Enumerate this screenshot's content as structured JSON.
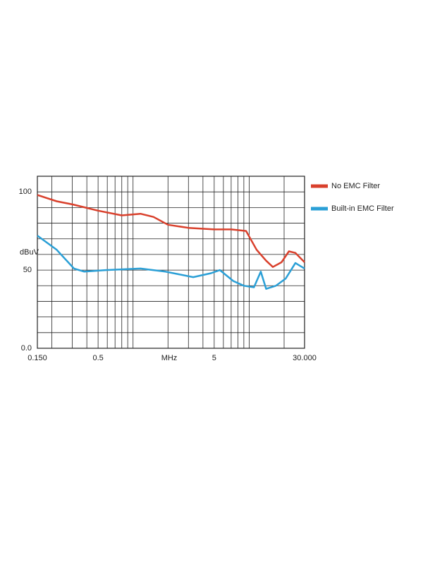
{
  "chart_data": {
    "type": "line",
    "x_label": "MHz",
    "y_label": "dBuV",
    "log_x": true,
    "grid": true,
    "xlim": [
      0.15,
      30
    ],
    "ylim": [
      0,
      110
    ],
    "xticks": [
      {
        "value": 0.15,
        "label": "0.150"
      },
      0.5,
      5,
      {
        "value": 30,
        "label": "30.000"
      }
    ],
    "xminor": [
      0.2,
      0.3,
      0.4,
      0.6,
      0.7,
      0.8,
      0.9,
      1,
      2,
      3,
      4,
      6,
      7,
      8,
      9,
      10,
      20
    ],
    "yticks": [
      {
        "value": 0,
        "label": "0.0"
      },
      50,
      100
    ],
    "yminor": [
      10,
      20,
      30,
      40,
      60,
      70,
      80,
      90,
      110
    ],
    "legend": "right",
    "series": [
      {
        "name": "No EMC Filter",
        "color": "#d9402c",
        "x": [
          0.15,
          0.22,
          0.3,
          0.5,
          0.8,
          1.16,
          1.5,
          2,
          3,
          5,
          7,
          9.4,
          11.6,
          14,
          16,
          19,
          22,
          25,
          30
        ],
        "values": [
          98,
          94,
          92,
          88,
          85,
          86,
          84,
          79,
          77,
          76,
          76,
          75,
          63,
          56,
          52,
          55,
          62,
          61,
          55
        ]
      },
      {
        "name": "Built-in EMC Filter",
        "color": "#2a9fd6",
        "x": [
          0.15,
          0.22,
          0.31,
          0.38,
          0.58,
          1.16,
          1.9,
          3.3,
          4.7,
          5.6,
          7.3,
          9,
          11,
          12.6,
          14,
          17,
          20.6,
          25,
          30
        ],
        "values": [
          72,
          63,
          51,
          49,
          50,
          51,
          49,
          45.5,
          48,
          50,
          43,
          40,
          39,
          49,
          38,
          40,
          44.5,
          54.5,
          51
        ]
      }
    ]
  }
}
